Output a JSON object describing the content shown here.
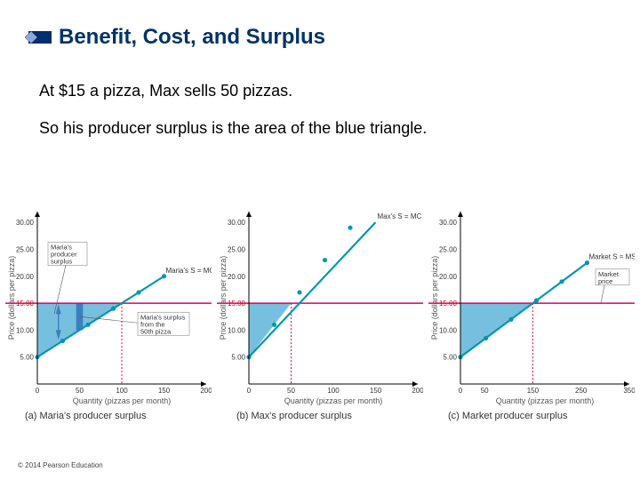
{
  "header": {
    "title": "Benefit, Cost, and Surplus",
    "bullet": {
      "fill_color": "#002e6e",
      "diamond_color": "#88aadd"
    }
  },
  "body": {
    "line1": "At $15 a pizza, Max sells 50 pizzas.",
    "line2": "So his producer surplus is the area of the blue triangle."
  },
  "common": {
    "price_line_value": 15.0,
    "price_line_color": "#d6006c",
    "supply_line_color": "#0097b2",
    "triangle_fill": "#5fb4d8",
    "bar_fill": "#3a7fbf",
    "box_stroke": "#888",
    "dash_color": "#d6006c",
    "axis_color": "#000",
    "ylabel": "Price (dollars per pizza)",
    "xlabel": "Quantity (pizzas per month)",
    "yticks": [
      5.0,
      10.0,
      15.0,
      20.0,
      25.0,
      30.0
    ],
    "red_ytick": "15.00"
  },
  "charts": {
    "a": {
      "caption": "(a) Maria's producer surplus",
      "supply_label": "Maria's S = MC",
      "xticks": [
        0,
        50,
        100,
        150,
        200
      ],
      "x_at_price": 100,
      "show_triangle": true,
      "show_bar": true,
      "annot1": "Maria's\nproducer\nsurplus",
      "annot2": "Maria's surplus\nfrom the\n50th pizza",
      "annot1_pointer_to": "triangle",
      "annot2_pointer_to": "bar"
    },
    "b": {
      "caption": "(b) Max's producer surplus",
      "supply_label": "Max's S = MC",
      "xticks": [
        0,
        50,
        100,
        150,
        200
      ],
      "x_at_price": 50,
      "show_triangle": true,
      "show_bar": false
    },
    "c": {
      "caption": "(c) Market producer surplus",
      "supply_label": "Market S = MSC",
      "xticks": [
        0,
        50,
        150,
        250,
        350
      ],
      "x_at_price": 150,
      "show_triangle": true,
      "show_bar": false,
      "annot_right": "Market\nprice"
    }
  },
  "footer": "© 2014 Pearson Education"
}
